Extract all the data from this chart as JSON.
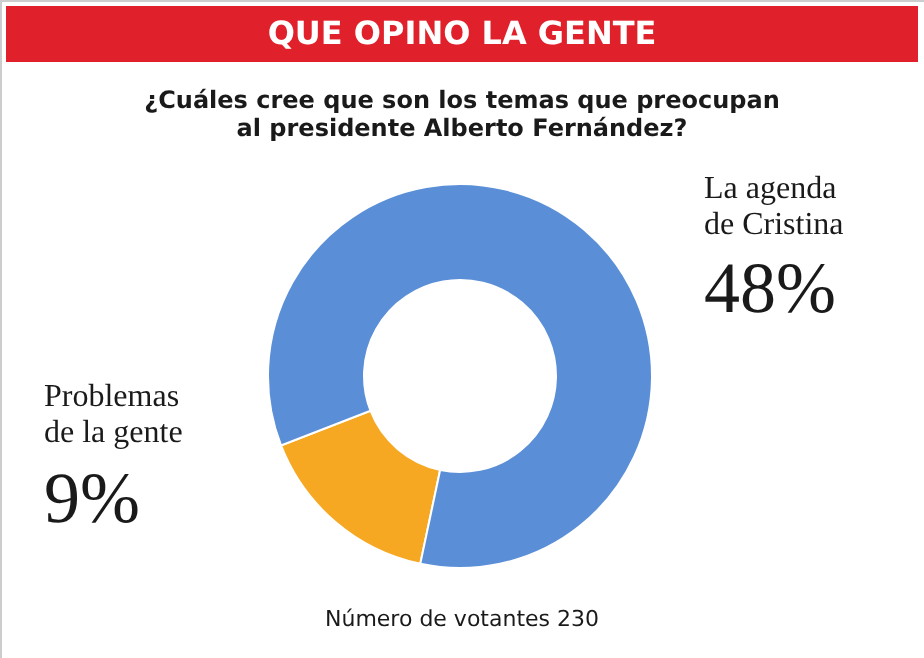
{
  "chart_data": {
    "type": "donut",
    "title": "QUE OPINO LA GENTE",
    "subtitle": "¿Cuáles cree que son los temas que preocupan\nal presidente Alberto Fernández?",
    "categories": [
      "Problemas\nde la gente",
      "La agenda\nde Cristina"
    ],
    "values": [
      9,
      48
    ],
    "colors": [
      "#f7a823",
      "#5a8fd8"
    ],
    "value_labels": [
      "9%",
      "48%"
    ],
    "annotations": [
      "Número de votantes 230"
    ]
  }
}
